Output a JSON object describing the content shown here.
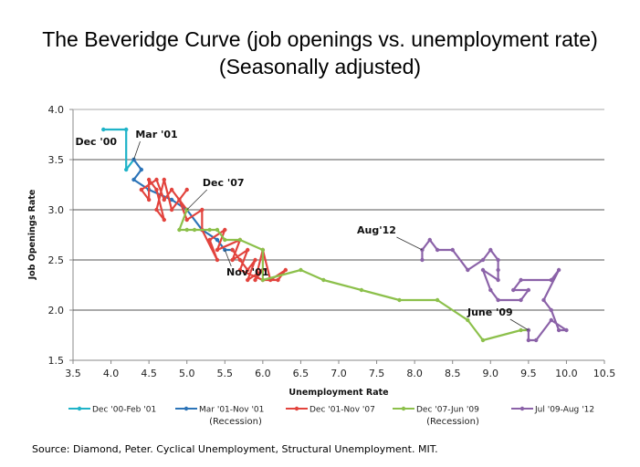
{
  "title_line1": "The Beveridge Curve (job openings vs. unemployment rate)",
  "title_line2": "(Seasonally adjusted)",
  "source": "Source: Diamond, Peter. Cyclical Unemployment, Structural Unemployment. MIT.",
  "chart_data": {
    "type": "line",
    "xlabel": "Unemployment Rate",
    "ylabel": "Job Openings Rate",
    "xlim": [
      3.5,
      10.5
    ],
    "ylim": [
      1.5,
      4.0
    ],
    "xticks": [
      "3.5",
      "4.0",
      "4.5",
      "5.0",
      "5.5",
      "6.0",
      "6.5",
      "7.0",
      "7.5",
      "8.0",
      "8.5",
      "9.0",
      "9.5",
      "10.0",
      "10.5"
    ],
    "yticks": [
      "1.5",
      "2.0",
      "2.5",
      "3.0",
      "3.5",
      "4.0"
    ],
    "grid": "horizontal",
    "legend_position": "bottom",
    "series": [
      {
        "name": "Dec '00-Feb '01",
        "sublabel": "",
        "color": "#1fb3c8",
        "points": [
          [
            3.9,
            3.8
          ],
          [
            4.2,
            3.8
          ],
          [
            4.2,
            3.4
          ],
          [
            4.3,
            3.5
          ]
        ]
      },
      {
        "name": "Mar '01-Nov '01",
        "sublabel": "(Recession)",
        "color": "#2c74b8",
        "points": [
          [
            4.3,
            3.5
          ],
          [
            4.4,
            3.4
          ],
          [
            4.3,
            3.3
          ],
          [
            4.5,
            3.2
          ],
          [
            4.8,
            3.1
          ],
          [
            5.0,
            3.0
          ],
          [
            5.2,
            2.8
          ],
          [
            5.4,
            2.7
          ],
          [
            5.5,
            2.6
          ],
          [
            5.6,
            2.6
          ]
        ]
      },
      {
        "name": "Dec '01-Nov '07",
        "sublabel": "",
        "color": "#e2433d",
        "points": [
          [
            5.6,
            2.6
          ],
          [
            5.7,
            2.5
          ],
          [
            5.8,
            2.4
          ],
          [
            5.9,
            2.5
          ],
          [
            5.8,
            2.3
          ],
          [
            6.0,
            2.4
          ],
          [
            5.9,
            2.3
          ],
          [
            6.0,
            2.6
          ],
          [
            6.1,
            2.3
          ],
          [
            6.3,
            2.4
          ],
          [
            6.2,
            2.3
          ],
          [
            6.0,
            2.3
          ],
          [
            5.7,
            2.4
          ],
          [
            5.8,
            2.6
          ],
          [
            5.6,
            2.5
          ],
          [
            5.7,
            2.7
          ],
          [
            5.4,
            2.6
          ],
          [
            5.5,
            2.8
          ],
          [
            5.3,
            2.7
          ],
          [
            5.4,
            2.5
          ],
          [
            5.2,
            2.8
          ],
          [
            5.2,
            3.0
          ],
          [
            5.0,
            2.9
          ],
          [
            4.9,
            3.1
          ],
          [
            5.0,
            3.2
          ],
          [
            4.8,
            3.0
          ],
          [
            4.7,
            3.3
          ],
          [
            4.6,
            3.0
          ],
          [
            4.7,
            2.9
          ],
          [
            4.6,
            3.2
          ],
          [
            4.5,
            3.3
          ],
          [
            4.5,
            3.1
          ],
          [
            4.4,
            3.2
          ],
          [
            4.6,
            3.3
          ],
          [
            4.7,
            3.1
          ],
          [
            4.8,
            3.2
          ],
          [
            5.0,
            3.0
          ]
        ]
      },
      {
        "name": "Dec '07-Jun '09",
        "sublabel": "(Recession)",
        "color": "#8cc04b",
        "points": [
          [
            5.0,
            3.0
          ],
          [
            4.9,
            2.8
          ],
          [
            5.0,
            2.8
          ],
          [
            5.1,
            2.8
          ],
          [
            5.3,
            2.8
          ],
          [
            5.4,
            2.8
          ],
          [
            5.5,
            2.7
          ],
          [
            5.7,
            2.7
          ],
          [
            6.0,
            2.6
          ],
          [
            6.0,
            2.3
          ],
          [
            6.5,
            2.4
          ],
          [
            6.8,
            2.3
          ],
          [
            7.3,
            2.2
          ],
          [
            7.8,
            2.1
          ],
          [
            8.3,
            2.1
          ],
          [
            8.7,
            1.9
          ],
          [
            8.9,
            1.7
          ],
          [
            9.4,
            1.8
          ],
          [
            9.5,
            1.8
          ]
        ]
      },
      {
        "name": "Jul '09-Aug '12",
        "sublabel": "",
        "color": "#8b62a8",
        "points": [
          [
            9.5,
            1.8
          ],
          [
            9.5,
            1.7
          ],
          [
            9.6,
            1.7
          ],
          [
            9.8,
            1.9
          ],
          [
            10.0,
            1.8
          ],
          [
            9.9,
            1.8
          ],
          [
            9.8,
            2.0
          ],
          [
            9.7,
            2.1
          ],
          [
            9.9,
            2.4
          ],
          [
            9.8,
            2.3
          ],
          [
            9.4,
            2.3
          ],
          [
            9.3,
            2.2
          ],
          [
            9.5,
            2.2
          ],
          [
            9.4,
            2.1
          ],
          [
            9.1,
            2.1
          ],
          [
            9.0,
            2.2
          ],
          [
            8.9,
            2.4
          ],
          [
            9.1,
            2.3
          ],
          [
            9.1,
            2.4
          ],
          [
            9.1,
            2.5
          ],
          [
            9.0,
            2.6
          ],
          [
            8.9,
            2.5
          ],
          [
            8.7,
            2.4
          ],
          [
            8.5,
            2.6
          ],
          [
            8.3,
            2.6
          ],
          [
            8.2,
            2.7
          ],
          [
            8.1,
            2.6
          ],
          [
            8.1,
            2.5
          ]
        ]
      }
    ],
    "annotations": [
      {
        "text": "Dec '00",
        "x": 3.9,
        "y": 3.8
      },
      {
        "text": "Mar '01",
        "x": 4.3,
        "y": 3.5
      },
      {
        "text": "Dec '07",
        "x": 5.0,
        "y": 3.0
      },
      {
        "text": "Nov '01",
        "x": 5.5,
        "y": 2.6
      },
      {
        "text": "Aug'12",
        "x": 8.1,
        "y": 2.6
      },
      {
        "text": "June '09",
        "x": 9.5,
        "y": 1.8
      }
    ]
  }
}
